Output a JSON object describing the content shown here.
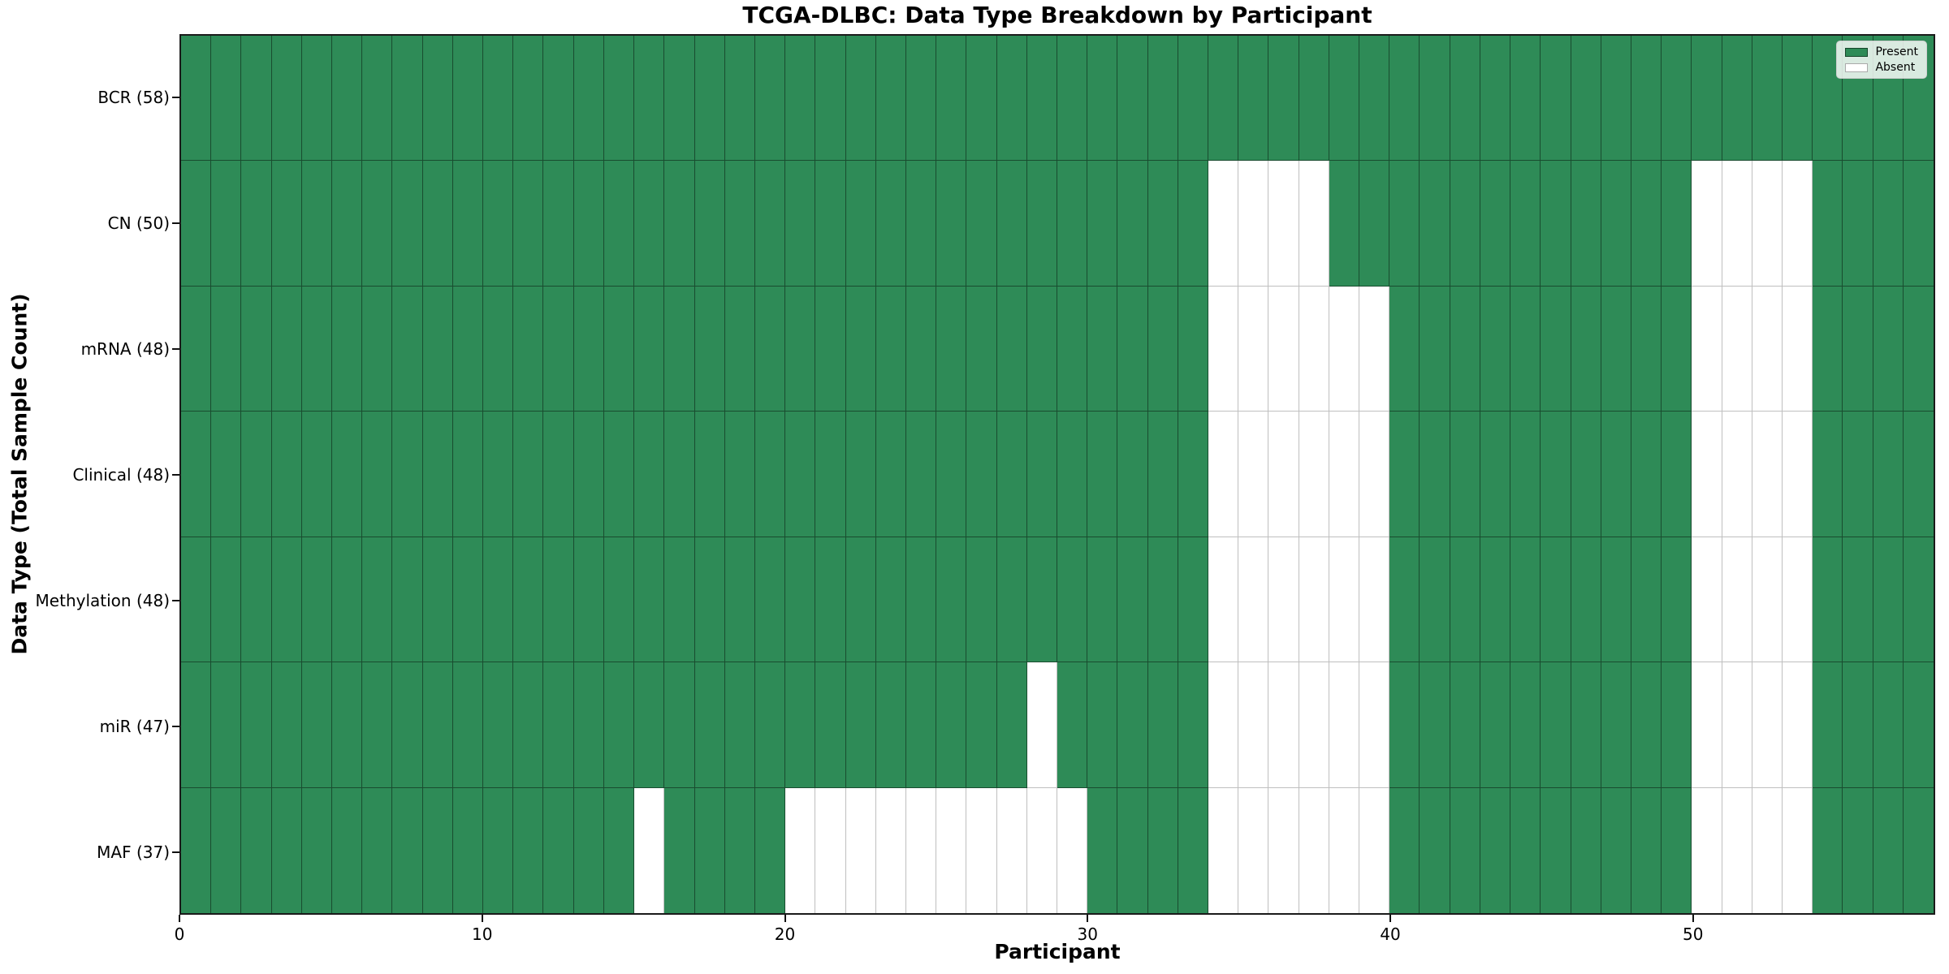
{
  "chart_data": {
    "type": "heatmap",
    "title": "TCGA-DLBC: Data Type Breakdown by Participant",
    "xlabel": "Participant",
    "ylabel": "Data Type (Total Sample Count)",
    "x_ticks": [
      0,
      10,
      20,
      30,
      40,
      50
    ],
    "n_participants": 58,
    "rows": [
      {
        "label": "BCR (58)",
        "present_count": 58,
        "absent_participants": []
      },
      {
        "label": "CN (50)",
        "present_count": 50,
        "absent_participants": [
          34,
          35,
          36,
          37,
          50,
          51,
          52,
          53
        ]
      },
      {
        "label": "mRNA (48)",
        "present_count": 48,
        "absent_participants": [
          34,
          35,
          36,
          37,
          38,
          39,
          50,
          51,
          52,
          53
        ]
      },
      {
        "label": "Clinical (48)",
        "present_count": 48,
        "absent_participants": [
          34,
          35,
          36,
          37,
          38,
          39,
          50,
          51,
          52,
          53
        ]
      },
      {
        "label": "Methylation (48)",
        "present_count": 48,
        "absent_participants": [
          34,
          35,
          36,
          37,
          38,
          39,
          50,
          51,
          52,
          53
        ]
      },
      {
        "label": "miR (47)",
        "present_count": 47,
        "absent_participants": [
          28,
          34,
          35,
          36,
          37,
          38,
          39,
          50,
          51,
          52,
          53
        ]
      },
      {
        "label": "MAF (37)",
        "present_count": 37,
        "absent_participants": [
          15,
          20,
          21,
          22,
          23,
          24,
          25,
          26,
          27,
          28,
          29,
          34,
          35,
          36,
          37,
          38,
          39,
          50,
          51,
          52,
          53
        ]
      }
    ],
    "legend": [
      {
        "label": "Present",
        "color": "#2e8b57"
      },
      {
        "label": "Absent",
        "color": "#ffffff"
      }
    ],
    "colors": {
      "present": "#2e8b57",
      "absent": "#ffffff",
      "cell_edge": "rgba(0,0,0,0.45)"
    },
    "legend_position": "upper right",
    "grid": "cell-borders"
  }
}
